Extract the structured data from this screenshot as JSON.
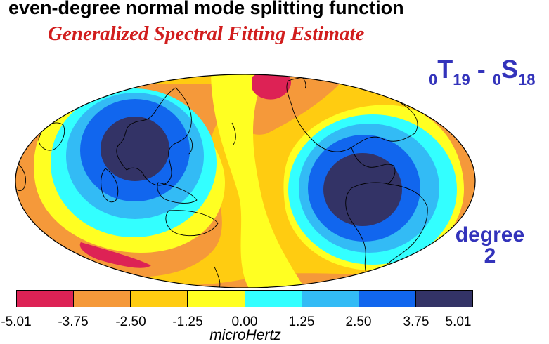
{
  "title": "even-degree normal mode splitting function",
  "subtitle": "Generalized Spectral Fitting Estimate",
  "mode_label": {
    "first_prefix": "0",
    "first_letter": "T",
    "first_sub": "19",
    "separator": " - ",
    "second_prefix": "0",
    "second_letter": "S",
    "second_sub": "18"
  },
  "degree_label": {
    "line1": "degree",
    "line2": "2"
  },
  "colorbar": {
    "unit": "microHertz",
    "tick_labels": [
      "-5.01",
      "-3.75",
      "-2.50",
      "-1.25",
      "0.00",
      "1.25",
      "2.50",
      "3.75",
      "5.01"
    ],
    "colors": [
      "#dd2255",
      "#f5993a",
      "#ffcc11",
      "#ffff22",
      "#33ffff",
      "#33bbf5",
      "#1166ee",
      "#333366"
    ]
  },
  "map": {
    "projection": "Mollweide",
    "background_color": "#ffcc11",
    "coastlines": true
  }
}
